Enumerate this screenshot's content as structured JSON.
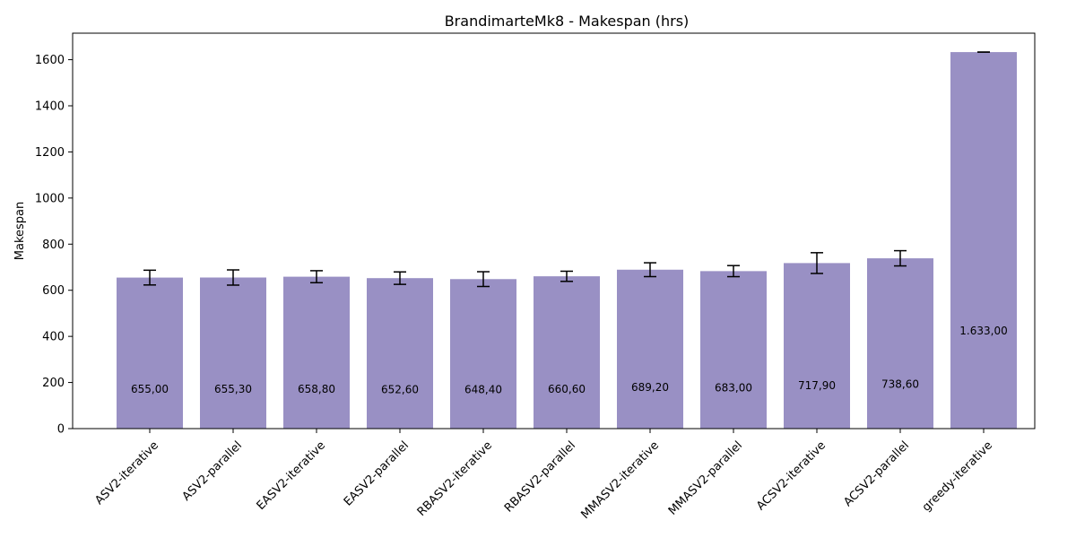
{
  "chart_data": {
    "type": "bar",
    "title": "BrandimarteMk8 - Makespan (hrs)",
    "xlabel": "",
    "ylabel": "Makespan",
    "ylim": [
      0,
      1715
    ],
    "yticks": [
      0,
      200,
      400,
      600,
      800,
      1000,
      1200,
      1400,
      1600
    ],
    "grid": false,
    "bar_color": "#9990c4",
    "categories": [
      "ASV2-iterative",
      "ASV2-parallel",
      "EASV2-iterative",
      "EASV2-parallel",
      "RBASV2-iterative",
      "RBASV2-parallel",
      "MMASV2-iterative",
      "MMASV2-parallel",
      "ACSV2-iterative",
      "ACSV2-parallel",
      "greedy-iterative"
    ],
    "values": [
      655.0,
      655.3,
      658.8,
      652.6,
      648.4,
      660.6,
      689.2,
      683.0,
      717.9,
      738.6,
      1633.0
    ],
    "errors": [
      32,
      33,
      26,
      27,
      32,
      22,
      30,
      24,
      45,
      33,
      0
    ],
    "value_labels": [
      "655,00",
      "655,30",
      "658,80",
      "652,60",
      "648,40",
      "660,60",
      "689,20",
      "683,00",
      "717,90",
      "738,60",
      "1.633,00"
    ]
  }
}
